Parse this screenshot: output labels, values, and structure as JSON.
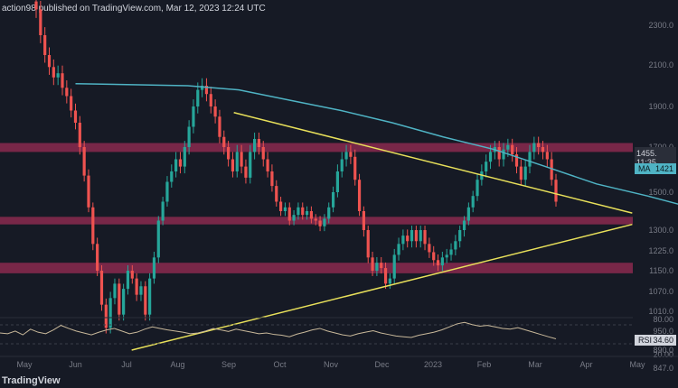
{
  "header": {
    "text": "action98 published on TradingView.com, Mar 12, 2023 12:24 UTC"
  },
  "logo": {
    "text": "TradingView"
  },
  "colors": {
    "bg": "#161a25",
    "up": "#26a69a",
    "down": "#ef5350",
    "ma": "#4fb3c4",
    "trend": "#e8e05a",
    "zone": "#8a2a4f",
    "rsi": "#c8b89a",
    "axis": "#787b86"
  },
  "chart_data": {
    "type": "candlestick",
    "price_axis_ticks": [
      "2300.0",
      "2100.0",
      "1900.0",
      "1700.0",
      "1600.0",
      "1500.0",
      "1300.0",
      "1225.0",
      "1150.0",
      "1070.0",
      "1010.0",
      "950.0",
      "890.0",
      "847.0"
    ],
    "time_axis_ticks": [
      "May",
      "Jun",
      "Jul",
      "Aug",
      "Sep",
      "Oct",
      "Nov",
      "Dec",
      "2023",
      "Feb",
      "Mar",
      "Apr",
      "May"
    ],
    "last_price_label": "1455.",
    "last_time_label": "11:35",
    "ma_label": "MA",
    "ma_value": "1421",
    "rsi_ticks": [
      "80.00",
      "20.00"
    ],
    "rsi_label": "RSI",
    "rsi_value": "34.60",
    "ylim": [
      840,
      2360
    ],
    "price_key": [
      [
        2300,
        28
      ],
      [
        2100,
        72
      ],
      [
        1900,
        118
      ],
      [
        1700,
        163
      ],
      [
        1600,
        190
      ],
      [
        1500,
        213
      ],
      [
        1300,
        255
      ],
      [
        1225,
        278
      ],
      [
        1150,
        300
      ],
      [
        1070,
        323
      ],
      [
        1010,
        345
      ],
      [
        950,
        367
      ],
      [
        890,
        388
      ],
      [
        847,
        408
      ]
    ],
    "zones": [
      [
        1680,
        1720
      ],
      [
        1330,
        1370
      ],
      [
        1140,
        1180
      ]
    ],
    "ma_series": [
      [
        0,
        2010
      ],
      [
        2,
        2000
      ],
      [
        3,
        1980
      ],
      [
        4,
        1930
      ],
      [
        5,
        1880
      ],
      [
        6,
        1820
      ],
      [
        7,
        1750
      ],
      [
        8,
        1690
      ],
      [
        9,
        1620
      ],
      [
        10,
        1540
      ],
      [
        11,
        1480
      ],
      [
        11.7,
        1430
      ]
    ],
    "rsi_series": [
      50,
      48,
      55,
      45,
      60,
      52,
      48,
      58,
      70,
      62,
      55,
      50,
      45,
      52,
      58,
      62,
      55,
      48,
      52,
      60,
      66,
      62,
      58,
      55,
      52,
      48,
      50,
      55,
      62,
      58,
      54,
      60,
      56,
      52,
      48,
      50,
      46,
      44,
      40,
      47,
      52,
      58,
      62,
      55,
      50,
      45,
      42,
      48,
      52,
      56,
      50,
      46,
      42,
      40,
      38,
      44,
      48,
      52,
      58,
      66,
      74,
      78,
      72,
      68,
      70,
      66,
      62,
      60,
      64,
      58,
      52,
      46,
      40,
      34.6
    ],
    "trendlines": [
      {
        "from": [
          2.1,
          890
        ],
        "to": [
          11.9,
          1330
        ]
      },
      {
        "from": [
          4.1,
          1870
        ],
        "to": [
          11.9,
          1390
        ]
      }
    ],
    "closes": [
      2380,
      2250,
      2150,
      2090,
      2040,
      2060,
      1990,
      1950,
      1880,
      1820,
      1700,
      1580,
      1420,
      1250,
      1150,
      1030,
      960,
      1050,
      1100,
      1000,
      1080,
      1150,
      1120,
      1060,
      1090,
      1000,
      1120,
      1200,
      1350,
      1450,
      1550,
      1600,
      1650,
      1620,
      1700,
      1800,
      1900,
      1980,
      2000,
      1960,
      1900,
      1850,
      1750,
      1700,
      1650,
      1600,
      1680,
      1620,
      1570,
      1680,
      1740,
      1700,
      1650,
      1600,
      1530,
      1450,
      1400,
      1420,
      1350,
      1380,
      1420,
      1380,
      1400,
      1360,
      1350,
      1320,
      1360,
      1420,
      1500,
      1600,
      1650,
      1680,
      1660,
      1560,
      1400,
      1300,
      1200,
      1150,
      1180,
      1160,
      1100,
      1120,
      1210,
      1250,
      1280,
      1260,
      1300,
      1260,
      1300,
      1250,
      1220,
      1190,
      1170,
      1200,
      1210,
      1230,
      1260,
      1300,
      1350,
      1420,
      1480,
      1560,
      1600,
      1640,
      1680,
      1700,
      1650,
      1690,
      1710,
      1670,
      1620,
      1560,
      1620,
      1680,
      1720,
      1700,
      1680,
      1650,
      1560,
      1450
    ]
  }
}
